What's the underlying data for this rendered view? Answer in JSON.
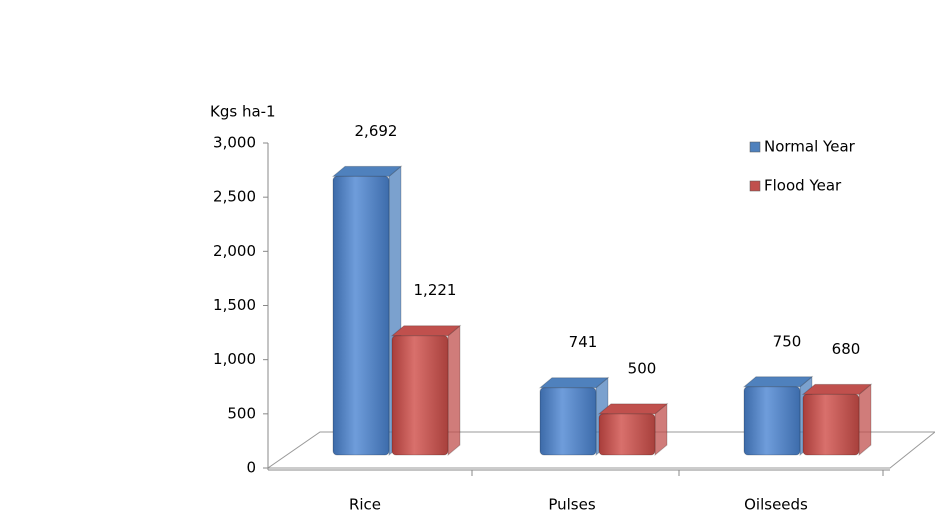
{
  "chart_data": {
    "type": "bar3d",
    "y_axis_label": "Kgs ha-1",
    "categories": [
      "Rice",
      "Pulses",
      "Oilseeds"
    ],
    "series": [
      {
        "name": "Normal Year",
        "color": "#4f81bd",
        "values": [
          2692,
          741,
          750
        ],
        "value_labels": [
          "2,692",
          "741",
          "750"
        ]
      },
      {
        "name": "Flood Year",
        "color": "#c0504d",
        "values": [
          1221,
          500,
          680
        ],
        "value_labels": [
          "1,221",
          "500",
          "680"
        ]
      }
    ],
    "ylim": [
      0,
      3000
    ],
    "yticks": [
      0,
      500,
      {
        "value": 1000,
        "label": "1,000"
      },
      {
        "value": 1500,
        "label": "1,500"
      },
      {
        "value": 2000,
        "label": "2,000"
      },
      {
        "value": 2500,
        "label": "2,500"
      },
      {
        "value": 3000,
        "label": "3,000"
      }
    ],
    "legend": "upper right"
  }
}
